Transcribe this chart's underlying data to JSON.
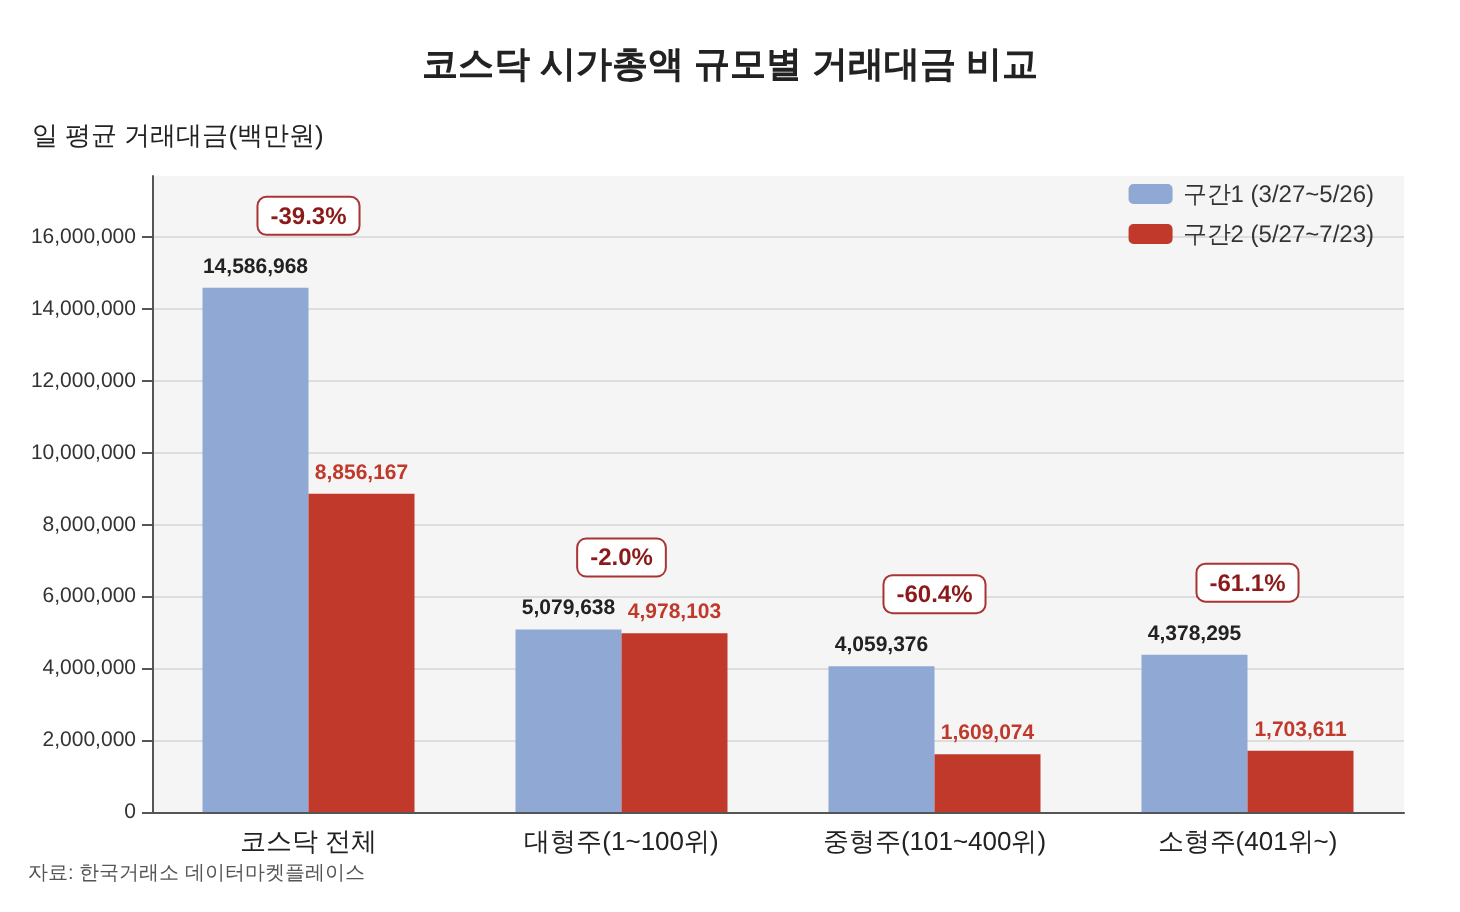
{
  "chart_data": {
    "type": "bar",
    "title": "코스닥 시가총액 규모별 거래대금 비교",
    "ylabel": "일 평균 거래대금(백만원)",
    "categories": [
      "코스닥 전체",
      "대형주(1~100위)",
      "중형주(101~400위)",
      "소형주(401위~)"
    ],
    "series": [
      {
        "name": "구간1 (3/27~5/26)",
        "color": "#8fa8d4",
        "values": [
          14586968,
          5079638,
          4059376,
          4378295
        ],
        "value_labels": [
          "14,586,968",
          "5,079,638",
          "4,059,376",
          "4,378,295"
        ]
      },
      {
        "name": "구간2 (5/27~7/23)",
        "color": "#c0392b",
        "values": [
          8856167,
          4978103,
          1609074,
          1703611
        ],
        "value_labels": [
          "8,856,167",
          "4,978,103",
          "1,609,074",
          "1,703,611"
        ]
      }
    ],
    "ylim": [
      0,
      17700000
    ],
    "yticks": [
      0,
      {
        "value": 2000000,
        "label": "2,000,000"
      },
      {
        "value": 4000000,
        "label": "4,000,000"
      },
      {
        "value": 6000000,
        "label": "6,000,000"
      },
      {
        "value": 8000000,
        "label": "8,000,000"
      },
      {
        "value": 10000000,
        "label": "10,000,000"
      },
      {
        "value": 12000000,
        "label": "12,000,000"
      },
      {
        "value": 14000000,
        "label": "14,000,000"
      },
      {
        "value": 16000000,
        "label": "16,000,000"
      }
    ],
    "grid": "y",
    "legend": "top right",
    "annotations": [
      "-39.3%",
      "-2.0%",
      "-60.4%",
      "-61.1%",
      "자료: 한국거래소 데이터마켓플레이스"
    ]
  }
}
